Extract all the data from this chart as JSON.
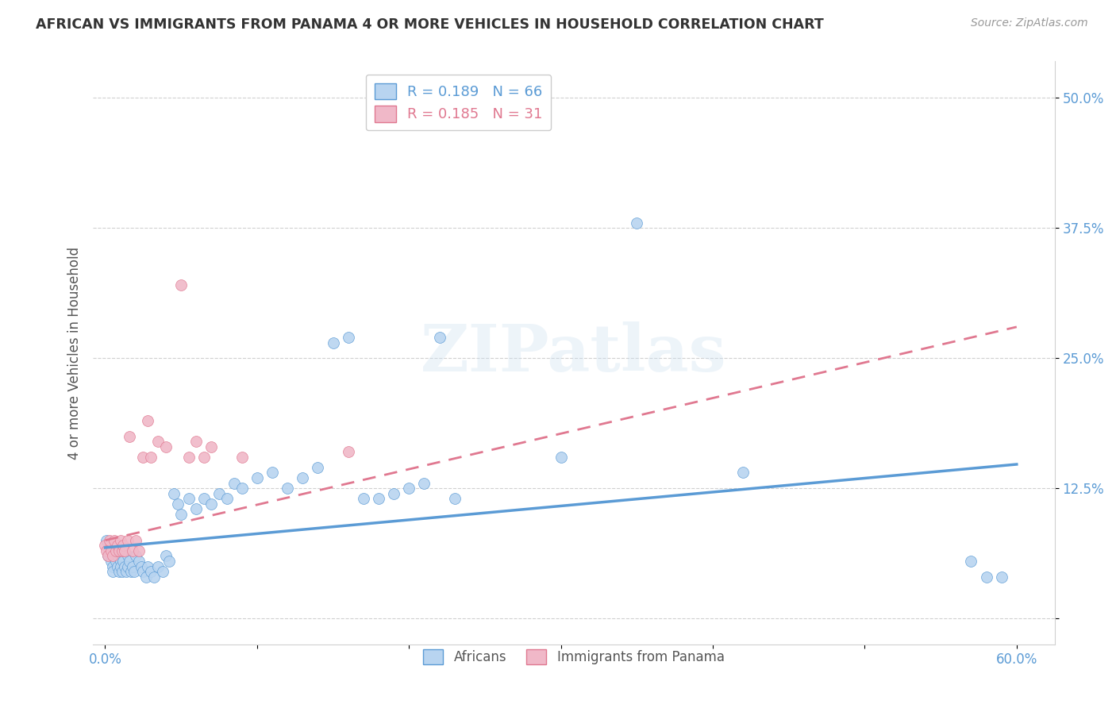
{
  "title": "AFRICAN VS IMMIGRANTS FROM PANAMA 4 OR MORE VEHICLES IN HOUSEHOLD CORRELATION CHART",
  "source": "Source: ZipAtlas.com",
  "ylabel": "4 or more Vehicles in Household",
  "x_ticks": [
    0.0,
    0.1,
    0.2,
    0.3,
    0.4,
    0.5,
    0.6
  ],
  "x_tick_labels": [
    "0.0%",
    "",
    "",
    "",
    "",
    "",
    "60.0%"
  ],
  "y_ticks": [
    0.0,
    0.125,
    0.25,
    0.375,
    0.5
  ],
  "y_tick_labels": [
    "",
    "12.5%",
    "25.0%",
    "37.5%",
    "50.0%"
  ],
  "xlim": [
    -0.008,
    0.625
  ],
  "ylim": [
    -0.025,
    0.535
  ],
  "watermark": "ZIPatlas",
  "africans_scatter_x": [
    0.001,
    0.002,
    0.003,
    0.004,
    0.005,
    0.005,
    0.006,
    0.007,
    0.008,
    0.008,
    0.009,
    0.01,
    0.01,
    0.011,
    0.012,
    0.013,
    0.014,
    0.015,
    0.015,
    0.016,
    0.017,
    0.018,
    0.019,
    0.02,
    0.022,
    0.024,
    0.025,
    0.027,
    0.028,
    0.03,
    0.032,
    0.035,
    0.038,
    0.04,
    0.042,
    0.045,
    0.048,
    0.05,
    0.055,
    0.06,
    0.065,
    0.07,
    0.075,
    0.08,
    0.085,
    0.09,
    0.1,
    0.11,
    0.12,
    0.13,
    0.14,
    0.15,
    0.16,
    0.17,
    0.18,
    0.19,
    0.2,
    0.21,
    0.22,
    0.23,
    0.3,
    0.35,
    0.42,
    0.57,
    0.58,
    0.59
  ],
  "africans_scatter_y": [
    0.075,
    0.06,
    0.065,
    0.055,
    0.05,
    0.045,
    0.065,
    0.055,
    0.06,
    0.05,
    0.045,
    0.055,
    0.05,
    0.045,
    0.055,
    0.05,
    0.045,
    0.06,
    0.05,
    0.055,
    0.045,
    0.05,
    0.045,
    0.06,
    0.055,
    0.05,
    0.045,
    0.04,
    0.05,
    0.045,
    0.04,
    0.05,
    0.045,
    0.06,
    0.055,
    0.12,
    0.11,
    0.1,
    0.115,
    0.105,
    0.115,
    0.11,
    0.12,
    0.115,
    0.13,
    0.125,
    0.135,
    0.14,
    0.125,
    0.135,
    0.145,
    0.265,
    0.27,
    0.115,
    0.115,
    0.12,
    0.125,
    0.13,
    0.27,
    0.115,
    0.155,
    0.38,
    0.14,
    0.055,
    0.04,
    0.04
  ],
  "panama_scatter_x": [
    0.0,
    0.001,
    0.002,
    0.003,
    0.004,
    0.005,
    0.006,
    0.007,
    0.008,
    0.009,
    0.01,
    0.011,
    0.012,
    0.013,
    0.015,
    0.016,
    0.018,
    0.02,
    0.022,
    0.025,
    0.028,
    0.03,
    0.035,
    0.04,
    0.05,
    0.055,
    0.06,
    0.065,
    0.07,
    0.09,
    0.16
  ],
  "panama_scatter_y": [
    0.07,
    0.065,
    0.06,
    0.075,
    0.065,
    0.06,
    0.075,
    0.065,
    0.07,
    0.065,
    0.075,
    0.065,
    0.07,
    0.065,
    0.075,
    0.175,
    0.065,
    0.075,
    0.065,
    0.155,
    0.19,
    0.155,
    0.17,
    0.165,
    0.32,
    0.155,
    0.17,
    0.155,
    0.165,
    0.155,
    0.16
  ],
  "blue_line_x": [
    0.0,
    0.6
  ],
  "blue_line_y": [
    0.068,
    0.148
  ],
  "pink_line_x": [
    0.0,
    0.6
  ],
  "pink_line_y": [
    0.075,
    0.28
  ],
  "scatter_size": 100,
  "blue_color": "#b8d4f0",
  "pink_color": "#f0b8c8",
  "blue_edge_color": "#5b9bd5",
  "pink_edge_color": "#e07890",
  "title_color": "#333333",
  "axis_tick_color": "#5b9bd5",
  "grid_color": "#d0d0d0",
  "background_color": "#ffffff",
  "legend1_blue_r": "R = 0.189",
  "legend1_blue_n": "N = 66",
  "legend1_pink_r": "R = 0.185",
  "legend1_pink_n": "N = 31"
}
